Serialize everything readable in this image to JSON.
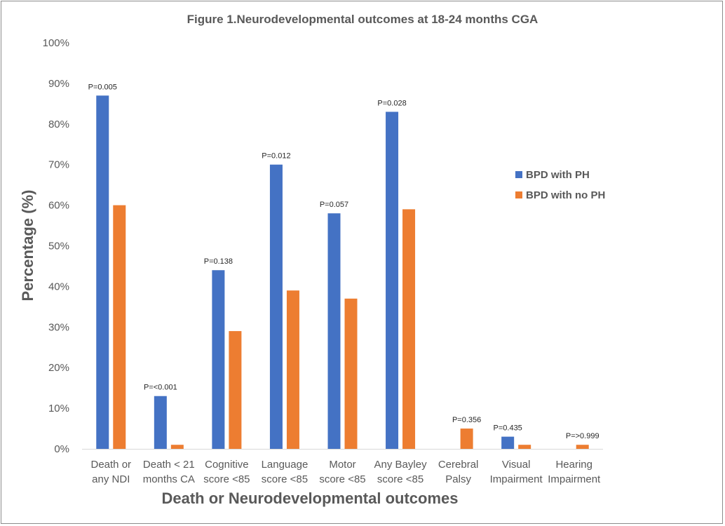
{
  "chart_data": {
    "type": "bar",
    "title": "Figure 1.Neurodevelopmental outcomes at 18-24 months CGA",
    "xlabel": "Death or Neurodevelopmental outcomes",
    "ylabel": "Percentage (%)",
    "ylim": [
      0,
      100
    ],
    "yticks": [
      "0%",
      "10%",
      "20%",
      "30%",
      "40%",
      "50%",
      "60%",
      "70%",
      "80%",
      "90%",
      "100%"
    ],
    "categories": [
      [
        "Death or",
        "any NDI"
      ],
      [
        "Death < 21",
        "months CA"
      ],
      [
        "Cognitive",
        "score <85"
      ],
      [
        "Language",
        "score <85"
      ],
      [
        "Motor",
        "score <85"
      ],
      [
        "Any Bayley",
        "score <85"
      ],
      [
        "Cerebral",
        "Palsy"
      ],
      [
        "Visual",
        "Impairment"
      ],
      [
        "Hearing",
        "Impairment"
      ]
    ],
    "series": [
      {
        "name": "BPD with PH",
        "color": "#4472C4",
        "values": [
          87,
          13,
          44,
          70,
          58,
          83,
          0,
          3,
          0
        ]
      },
      {
        "name": "BPD with no  PH",
        "color": "#ED7D31",
        "values": [
          60,
          1,
          29,
          39,
          37,
          59,
          5,
          1,
          1
        ]
      }
    ],
    "p_values": [
      "P=0.005",
      "P=<0.001",
      "P=0.138",
      "P=0.012",
      "P=0.057",
      "P=0.028",
      "P=0.356",
      "P=0.435",
      "P=>0.999"
    ],
    "legend_position": "right",
    "grid": false
  }
}
